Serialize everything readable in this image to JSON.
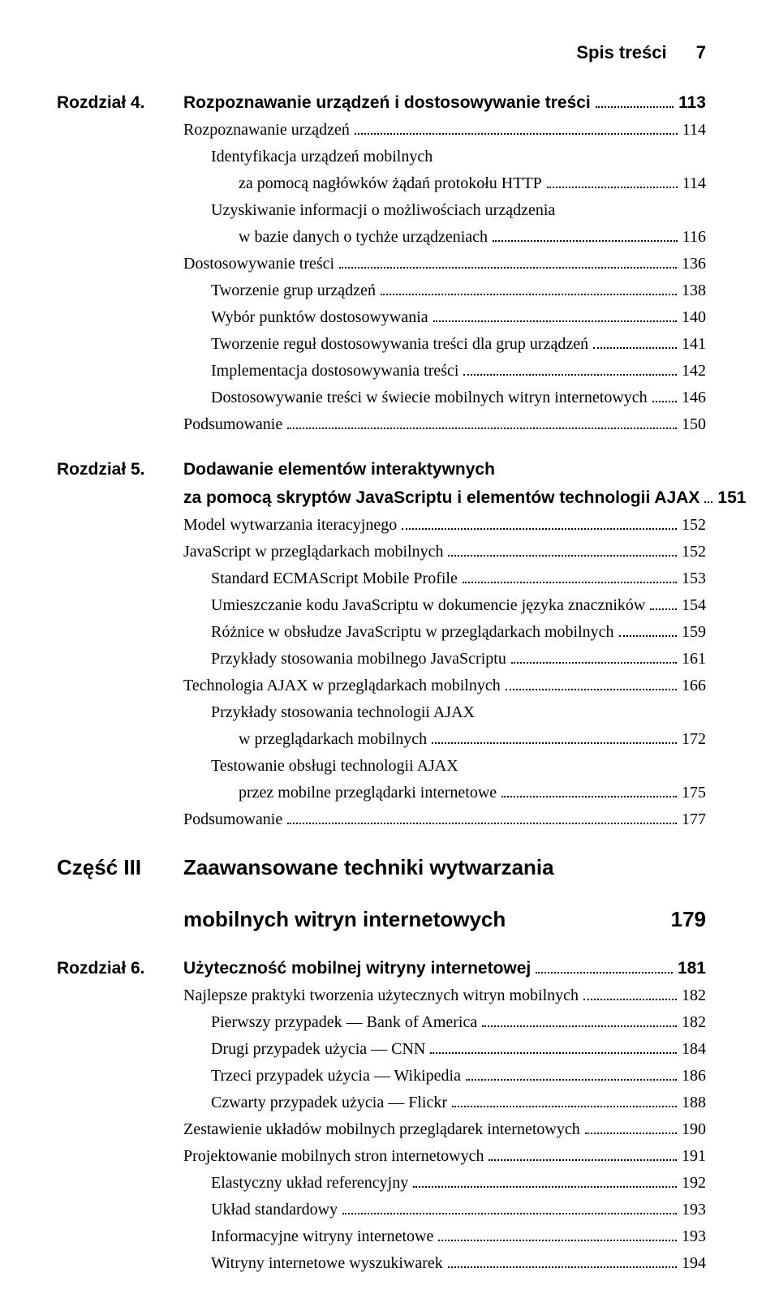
{
  "header": {
    "title": "Spis treści",
    "page": "7"
  },
  "entries": [
    {
      "label": "Rozdział 4.",
      "type": "chapter",
      "indent": 0,
      "lines": [
        {
          "text": "Rozpoznawanie urządzeń i dostosowywanie treści",
          "page": "113"
        }
      ]
    },
    {
      "indent": 0,
      "lines": [
        {
          "text": "Rozpoznawanie urządzeń",
          "page": "114"
        }
      ]
    },
    {
      "indent": 1,
      "lines": [
        {
          "text": "Identyfikacja urządzeń mobilnych"
        },
        {
          "extraIndent": 1,
          "text": "za pomocą nagłówków żądań protokołu HTTP",
          "page": "114"
        }
      ]
    },
    {
      "indent": 1,
      "lines": [
        {
          "text": "Uzyskiwanie informacji o możliwościach urządzenia"
        },
        {
          "extraIndent": 1,
          "text": "w bazie danych o tychże urządzeniach",
          "page": "116"
        }
      ]
    },
    {
      "indent": 0,
      "lines": [
        {
          "text": "Dostosowywanie treści",
          "page": "136"
        }
      ]
    },
    {
      "indent": 1,
      "lines": [
        {
          "text": "Tworzenie grup urządzeń",
          "page": "138"
        }
      ]
    },
    {
      "indent": 1,
      "lines": [
        {
          "text": "Wybór punktów dostosowywania",
          "page": "140"
        }
      ]
    },
    {
      "indent": 1,
      "lines": [
        {
          "text": "Tworzenie reguł dostosowywania treści dla grup urządzeń",
          "page": "141"
        }
      ]
    },
    {
      "indent": 1,
      "lines": [
        {
          "text": "Implementacja dostosowywania treści",
          "page": "142"
        }
      ]
    },
    {
      "indent": 1,
      "lines": [
        {
          "text": "Dostosowywanie treści w świecie mobilnych witryn internetowych",
          "page": "146"
        }
      ]
    },
    {
      "indent": 0,
      "lines": [
        {
          "text": "Podsumowanie",
          "page": "150"
        }
      ]
    },
    {
      "label": "Rozdział 5.",
      "type": "chapter",
      "gap": true,
      "indent": 0,
      "lines": [
        {
          "text": "Dodawanie elementów interaktywnych"
        },
        {
          "text": "za pomocą skryptów JavaScriptu i elementów technologii AJAX",
          "page": "151"
        }
      ]
    },
    {
      "indent": 0,
      "lines": [
        {
          "text": "Model wytwarzania iteracyjnego",
          "page": "152"
        }
      ]
    },
    {
      "indent": 0,
      "lines": [
        {
          "text": "JavaScript w przeglądarkach mobilnych",
          "page": "152"
        }
      ]
    },
    {
      "indent": 1,
      "lines": [
        {
          "text": "Standard ECMAScript Mobile Profile",
          "page": "153"
        }
      ]
    },
    {
      "indent": 1,
      "lines": [
        {
          "text": "Umieszczanie kodu JavaScriptu w dokumencie języka znaczników",
          "page": "154"
        }
      ]
    },
    {
      "indent": 1,
      "lines": [
        {
          "text": "Różnice w obsłudze JavaScriptu w przeglądarkach mobilnych",
          "page": "159"
        }
      ]
    },
    {
      "indent": 1,
      "lines": [
        {
          "text": "Przykłady stosowania mobilnego JavaScriptu",
          "page": "161"
        }
      ]
    },
    {
      "indent": 0,
      "lines": [
        {
          "text": "Technologia AJAX w przeglądarkach mobilnych",
          "page": "166"
        }
      ]
    },
    {
      "indent": 1,
      "lines": [
        {
          "text": "Przykłady stosowania technologii AJAX"
        },
        {
          "extraIndent": 1,
          "text": "w przeglądarkach mobilnych",
          "page": "172"
        }
      ]
    },
    {
      "indent": 1,
      "lines": [
        {
          "text": "Testowanie obsługi technologii AJAX"
        },
        {
          "extraIndent": 1,
          "text": "przez mobilne przeglądarki internetowe",
          "page": "175"
        }
      ]
    },
    {
      "indent": 0,
      "lines": [
        {
          "text": "Podsumowanie",
          "page": "177"
        }
      ]
    },
    {
      "label": "Część III",
      "type": "part",
      "indent": 0,
      "lines": [
        {
          "text": "Zaawansowane techniki wytwarzania"
        },
        {
          "text": "mobilnych witryn internetowych",
          "page": "179",
          "noleader": true
        }
      ]
    },
    {
      "label": "Rozdział 6.",
      "type": "chapter",
      "gap": true,
      "indent": 0,
      "lines": [
        {
          "text": "Użyteczność mobilnej witryny internetowej",
          "page": "181"
        }
      ]
    },
    {
      "indent": 0,
      "lines": [
        {
          "text": "Najlepsze praktyki tworzenia użytecznych witryn mobilnych",
          "page": "182"
        }
      ]
    },
    {
      "indent": 1,
      "lines": [
        {
          "text": "Pierwszy przypadek — Bank of America",
          "page": "182"
        }
      ]
    },
    {
      "indent": 1,
      "lines": [
        {
          "text": "Drugi przypadek użycia — CNN",
          "page": "184"
        }
      ]
    },
    {
      "indent": 1,
      "lines": [
        {
          "text": "Trzeci przypadek użycia — Wikipedia",
          "page": "186"
        }
      ]
    },
    {
      "indent": 1,
      "lines": [
        {
          "text": "Czwarty przypadek użycia — Flickr",
          "page": "188"
        }
      ]
    },
    {
      "indent": 0,
      "lines": [
        {
          "text": "Zestawienie układów mobilnych przeglądarek internetowych",
          "page": "190"
        }
      ]
    },
    {
      "indent": 0,
      "lines": [
        {
          "text": "Projektowanie mobilnych stron internetowych",
          "page": "191"
        }
      ]
    },
    {
      "indent": 1,
      "lines": [
        {
          "text": "Elastyczny układ referencyjny",
          "page": "192"
        }
      ]
    },
    {
      "indent": 1,
      "lines": [
        {
          "text": "Układ standardowy",
          "page": "193"
        }
      ]
    },
    {
      "indent": 1,
      "lines": [
        {
          "text": "Informacyjne witryny internetowe",
          "page": "193"
        }
      ]
    },
    {
      "indent": 1,
      "lines": [
        {
          "text": "Witryny internetowe wyszukiwarek",
          "page": "194"
        }
      ]
    }
  ]
}
